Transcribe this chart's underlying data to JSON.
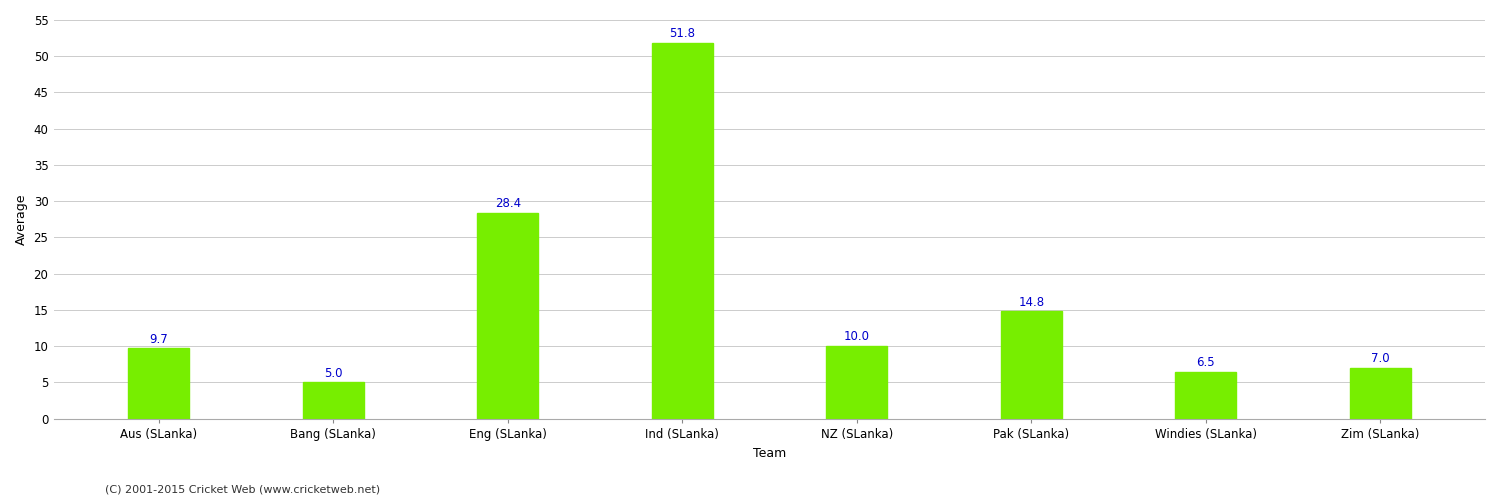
{
  "categories": [
    "Aus (SLanka)",
    "Bang (SLanka)",
    "Eng (SLanka)",
    "Ind (SLanka)",
    "NZ (SLanka)",
    "Pak (SLanka)",
    "Windies (SLanka)",
    "Zim (SLanka)"
  ],
  "values": [
    9.7,
    5.0,
    28.4,
    51.8,
    10.0,
    14.8,
    6.5,
    7.0
  ],
  "bar_color": "#77ee00",
  "bar_edge_color": "#77ee00",
  "xlabel": "Team",
  "ylabel": "Average",
  "ylim": [
    0,
    55
  ],
  "yticks": [
    0,
    5,
    10,
    15,
    20,
    25,
    30,
    35,
    40,
    45,
    50,
    55
  ],
  "label_color": "#0000cc",
  "label_fontsize": 8.5,
  "axis_label_fontsize": 9,
  "tick_fontsize": 8.5,
  "background_color": "#ffffff",
  "grid_color": "#cccccc",
  "bar_width": 0.35,
  "footer_text": "(C) 2001-2015 Cricket Web (www.cricketweb.net)",
  "footer_fontsize": 8,
  "footer_color": "#333333"
}
